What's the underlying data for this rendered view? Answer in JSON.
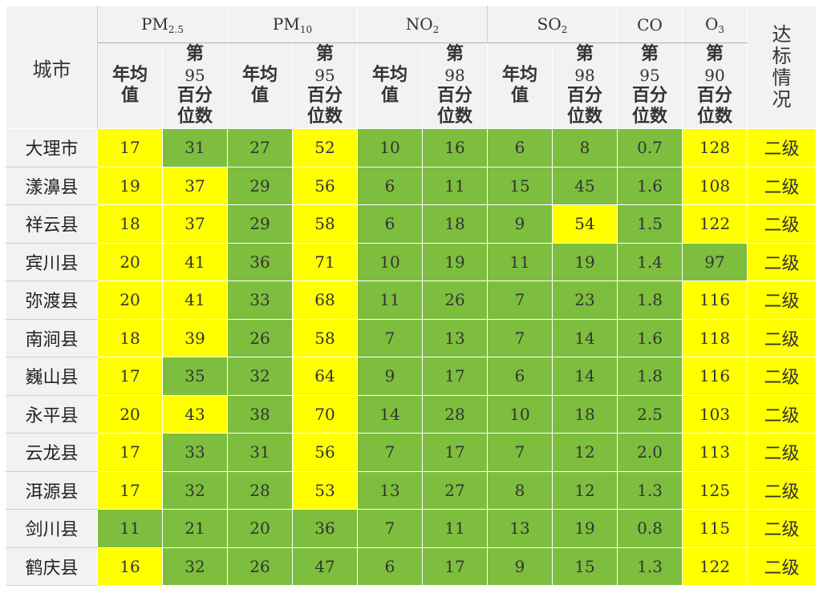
{
  "headers": {
    "city": "城市",
    "standard": "达标情况",
    "pollutants": [
      {
        "main": "PM",
        "sub": "2.5"
      },
      {
        "main": "PM",
        "sub": "10"
      },
      {
        "main": "NO",
        "sub": "2"
      },
      {
        "main": "SO",
        "sub": "2"
      },
      {
        "main": "CO",
        "sub": ""
      },
      {
        "main": "O",
        "sub": "3"
      }
    ],
    "sub_columns": [
      {
        "lines": [
          "年均",
          "值"
        ]
      },
      {
        "lines": [
          "第",
          "95",
          "百分",
          "位数"
        ]
      },
      {
        "lines": [
          "年均",
          "值"
        ]
      },
      {
        "lines": [
          "第",
          "95",
          "百分",
          "位数"
        ]
      },
      {
        "lines": [
          "年均",
          "值"
        ]
      },
      {
        "lines": [
          "第",
          "98",
          "百分",
          "位数"
        ]
      },
      {
        "lines": [
          "年均",
          "值"
        ]
      },
      {
        "lines": [
          "第",
          "98",
          "百分",
          "位数"
        ]
      },
      {
        "lines": [
          "第",
          "95",
          "百分",
          "位数"
        ]
      },
      {
        "lines": [
          "第",
          "90",
          "百分",
          "位数"
        ]
      }
    ]
  },
  "rows": [
    {
      "city": "大理市",
      "values": [
        "17",
        "31",
        "27",
        "52",
        "10",
        "16",
        "6",
        "8",
        "0.7",
        "128"
      ],
      "colors": [
        "y",
        "g",
        "g",
        "y",
        "g",
        "g",
        "g",
        "g",
        "g",
        "y"
      ],
      "status": "二级"
    },
    {
      "city": "漾濞县",
      "values": [
        "19",
        "37",
        "29",
        "56",
        "6",
        "11",
        "15",
        "45",
        "1.6",
        "108"
      ],
      "colors": [
        "y",
        "y",
        "g",
        "y",
        "g",
        "g",
        "g",
        "g",
        "g",
        "y"
      ],
      "status": "二级"
    },
    {
      "city": "祥云县",
      "values": [
        "18",
        "37",
        "29",
        "58",
        "6",
        "18",
        "9",
        "54",
        "1.5",
        "122"
      ],
      "colors": [
        "y",
        "y",
        "g",
        "y",
        "g",
        "g",
        "g",
        "y",
        "g",
        "y"
      ],
      "status": "二级"
    },
    {
      "city": "宾川县",
      "values": [
        "20",
        "41",
        "36",
        "71",
        "10",
        "19",
        "11",
        "19",
        "1.4",
        "97"
      ],
      "colors": [
        "y",
        "y",
        "g",
        "y",
        "g",
        "g",
        "g",
        "g",
        "g",
        "g"
      ],
      "status": "二级"
    },
    {
      "city": "弥渡县",
      "values": [
        "20",
        "41",
        "33",
        "68",
        "11",
        "26",
        "7",
        "23",
        "1.8",
        "116"
      ],
      "colors": [
        "y",
        "y",
        "g",
        "y",
        "g",
        "g",
        "g",
        "g",
        "g",
        "y"
      ],
      "status": "二级"
    },
    {
      "city": "南涧县",
      "values": [
        "18",
        "39",
        "26",
        "58",
        "7",
        "13",
        "7",
        "14",
        "1.6",
        "118"
      ],
      "colors": [
        "y",
        "y",
        "g",
        "y",
        "g",
        "g",
        "g",
        "g",
        "g",
        "y"
      ],
      "status": "二级"
    },
    {
      "city": "巍山县",
      "values": [
        "17",
        "35",
        "32",
        "64",
        "9",
        "17",
        "6",
        "14",
        "1.8",
        "116"
      ],
      "colors": [
        "y",
        "g",
        "g",
        "y",
        "g",
        "g",
        "g",
        "g",
        "g",
        "y"
      ],
      "status": "二级"
    },
    {
      "city": "永平县",
      "values": [
        "20",
        "43",
        "38",
        "70",
        "14",
        "28",
        "10",
        "18",
        "2.5",
        "103"
      ],
      "colors": [
        "y",
        "y",
        "g",
        "y",
        "g",
        "g",
        "g",
        "g",
        "g",
        "y"
      ],
      "status": "二级"
    },
    {
      "city": "云龙县",
      "values": [
        "17",
        "33",
        "31",
        "56",
        "7",
        "17",
        "7",
        "12",
        "2.0",
        "113"
      ],
      "colors": [
        "y",
        "g",
        "g",
        "y",
        "g",
        "g",
        "g",
        "g",
        "g",
        "y"
      ],
      "status": "二级"
    },
    {
      "city": "洱源县",
      "values": [
        "17",
        "32",
        "28",
        "53",
        "13",
        "27",
        "8",
        "12",
        "1.3",
        "125"
      ],
      "colors": [
        "y",
        "g",
        "g",
        "y",
        "g",
        "g",
        "g",
        "g",
        "g",
        "y"
      ],
      "status": "二级"
    },
    {
      "city": "剑川县",
      "values": [
        "11",
        "21",
        "20",
        "36",
        "7",
        "11",
        "13",
        "19",
        "0.8",
        "115"
      ],
      "colors": [
        "g",
        "g",
        "g",
        "g",
        "g",
        "g",
        "g",
        "g",
        "g",
        "y"
      ],
      "status": "二级"
    },
    {
      "city": "鹤庆县",
      "values": [
        "16",
        "32",
        "26",
        "47",
        "6",
        "17",
        "9",
        "15",
        "1.3",
        "122"
      ],
      "colors": [
        "y",
        "g",
        "g",
        "g",
        "g",
        "g",
        "g",
        "g",
        "g",
        "y"
      ],
      "status": "二级"
    }
  ],
  "colors": {
    "yellow": "#ffff00",
    "green": "#7dbe3e",
    "header_bg": "#f2f2f2"
  }
}
